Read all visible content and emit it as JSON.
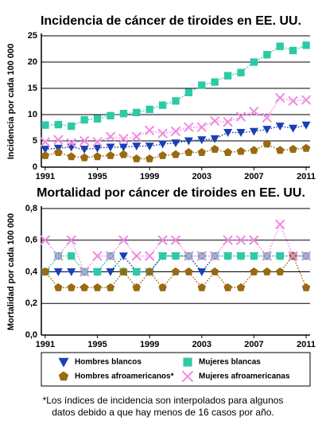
{
  "chart_data": [
    {
      "type": "line",
      "title": "Incidencia de cáncer de tiroides en EE. UU.",
      "y_label": "Incidencia por cada 100 000",
      "x": [
        1991,
        1992,
        1993,
        1994,
        1995,
        1996,
        1997,
        1998,
        1999,
        2000,
        2001,
        2002,
        2003,
        2004,
        2005,
        2006,
        2007,
        2008,
        2009,
        2010,
        2011
      ],
      "xlim": [
        1990.7,
        2011.3
      ],
      "xticks": [
        1991,
        1995,
        1999,
        2003,
        2007,
        2011
      ],
      "ylim": [
        0,
        25
      ],
      "yticks": [
        0,
        5,
        10,
        15,
        20,
        25
      ],
      "grid": true,
      "series": [
        {
          "name": "Hombres blancos",
          "color": "#1a3fb5",
          "marker": "triangle-down",
          "values": [
            3.4,
            3.6,
            3.8,
            3.4,
            3.6,
            3.8,
            3.8,
            4.0,
            4.0,
            4.4,
            4.6,
            5.0,
            5.2,
            5.4,
            6.6,
            6.6,
            6.8,
            7.2,
            7.8,
            7.4,
            8.0
          ]
        },
        {
          "name": "Mujeres blancas",
          "color": "#2ec9a5",
          "marker": "square",
          "values": [
            8.0,
            8.1,
            7.8,
            9.0,
            9.2,
            9.8,
            10.2,
            10.4,
            11.0,
            11.8,
            12.6,
            14.2,
            15.6,
            16.2,
            17.4,
            18.0,
            20.0,
            21.4,
            23.0,
            22.2,
            23.2
          ]
        },
        {
          "name": "Hombres afroamericanos*",
          "color": "#9a6a12",
          "marker": "pentagon",
          "values": [
            2.2,
            2.8,
            2.0,
            1.8,
            2.0,
            2.2,
            2.4,
            1.6,
            1.6,
            2.2,
            2.4,
            2.8,
            2.8,
            3.4,
            2.8,
            3.0,
            3.2,
            4.4,
            3.2,
            3.4,
            3.6
          ]
        },
        {
          "name": "Mujeres afroamericanas",
          "color": "#f08ce0",
          "marker": "x",
          "values": [
            4.8,
            5.2,
            4.6,
            5.0,
            4.8,
            5.8,
            5.4,
            5.8,
            7.0,
            6.4,
            6.8,
            7.6,
            7.6,
            8.8,
            8.6,
            9.6,
            10.6,
            9.4,
            13.2,
            12.6,
            12.8
          ]
        }
      ]
    },
    {
      "type": "line",
      "title": "Mortalidad por cáncer de tiroides en EE. UU.",
      "y_label": "Mortalidad por cada 100 000",
      "x": [
        1991,
        1992,
        1993,
        1994,
        1995,
        1996,
        1997,
        1998,
        1999,
        2000,
        2001,
        2002,
        2003,
        2004,
        2005,
        2006,
        2007,
        2008,
        2009,
        2010,
        2011
      ],
      "xlim": [
        1990.7,
        2011.3
      ],
      "xticks": [
        1991,
        1995,
        1999,
        2003,
        2007,
        2011
      ],
      "ylim": [
        0,
        0.8
      ],
      "yticks": [
        {
          "value": 0,
          "label": "0,0"
        },
        {
          "value": 0.2,
          "label": "0,2"
        },
        {
          "value": 0.4,
          "label": "0,4"
        },
        {
          "value": 0.6,
          "label": "0,6"
        },
        {
          "value": 0.8,
          "label": "0,8"
        }
      ],
      "grid": true,
      "series": [
        {
          "values": [
            0.4,
            0.4,
            0.4,
            0.4,
            0.4,
            0.4,
            0.5,
            0.4,
            0.4,
            0.5,
            0.5,
            0.5,
            0.4,
            0.5,
            0.5,
            0.5,
            0.5,
            0.5,
            0.5,
            0.5,
            0.5
          ]
        },
        {
          "values": [
            0.4,
            0.5,
            0.5,
            0.4,
            0.4,
            0.5,
            0.4,
            0.4,
            0.4,
            0.5,
            0.5,
            0.5,
            0.5,
            0.5,
            0.5,
            0.5,
            0.5,
            0.5,
            0.5,
            0.5,
            0.5
          ]
        },
        {
          "values": [
            0.4,
            0.3,
            0.3,
            0.3,
            0.3,
            0.3,
            0.4,
            0.3,
            0.4,
            0.3,
            0.4,
            0.4,
            0.3,
            0.4,
            0.3,
            0.3,
            0.4,
            0.4,
            0.4,
            0.5,
            0.3
          ]
        },
        {
          "values": [
            0.6,
            0.5,
            0.6,
            0.4,
            0.5,
            0.5,
            0.6,
            0.5,
            0.5,
            0.6,
            0.6,
            0.5,
            0.5,
            0.5,
            0.6,
            0.6,
            0.6,
            0.5,
            0.7,
            0.5,
            0.5
          ]
        }
      ]
    }
  ],
  "footnote": "*Los índices de incidencia son interpolados para algunos datos debido a que hay menos de 16 casos por año."
}
